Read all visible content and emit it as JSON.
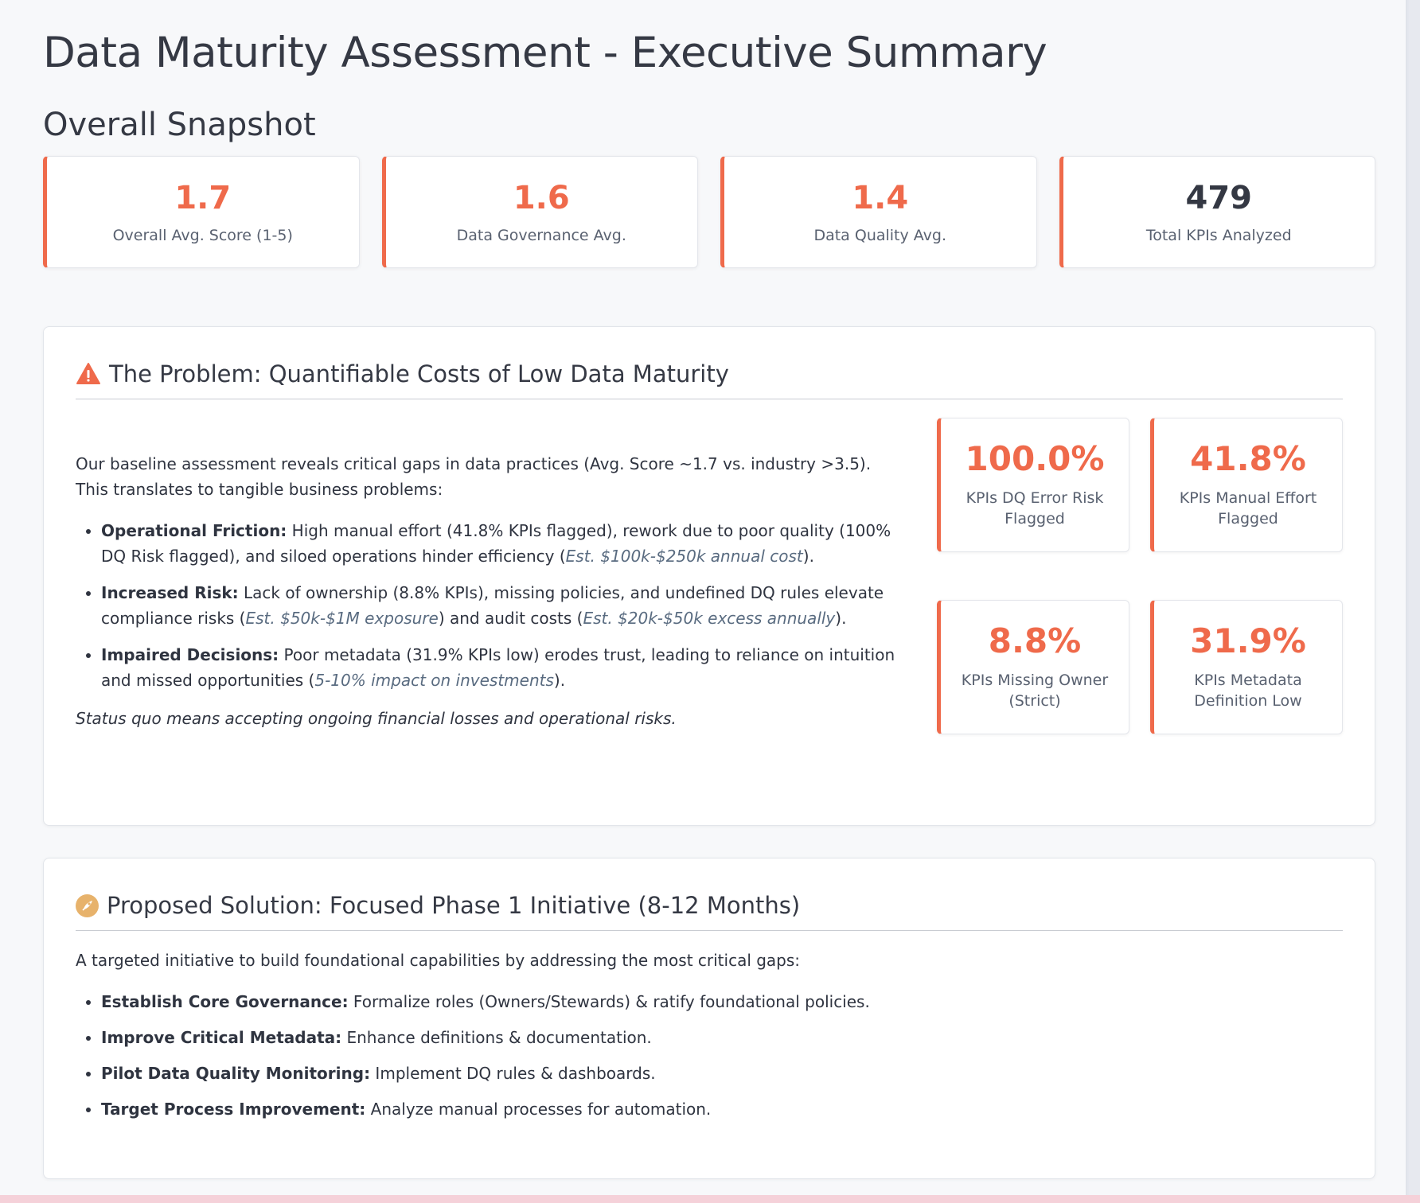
{
  "page_title": "Data Maturity Assessment - Executive Summary",
  "snapshot": {
    "title": "Overall Snapshot",
    "metrics": [
      {
        "value": "1.7",
        "label": "Overall Avg. Score (1-5)"
      },
      {
        "value": "1.6",
        "label": "Data Governance Avg."
      },
      {
        "value": "1.4",
        "label": "Data Quality Avg."
      },
      {
        "value": "479",
        "label": "Total KPIs Analyzed"
      }
    ]
  },
  "problem": {
    "icon": "warning-icon",
    "title": "The Problem: Quantifiable Costs of Low Data Maturity",
    "intro": "Our baseline assessment reveals critical gaps in data practices (Avg. Score ~1.7 vs. industry >3.5). This translates to tangible business problems:",
    "points": [
      {
        "bold": "Operational Friction:",
        "text": " High manual effort (41.8% KPIs flagged), rework due to poor quality (100% DQ Risk flagged), and siloed operations hinder efficiency (",
        "est": "Est. $100k-$250k annual cost",
        "tail": ")."
      },
      {
        "bold": "Increased Risk:",
        "text": " Lack of ownership (8.8% KPIs), missing policies, and undefined DQ rules elevate compliance risks (",
        "est": "Est. $50k-$1M exposure",
        "mid": ") and audit costs (",
        "est2": "Est. $20k-$50k excess annually",
        "tail": ")."
      },
      {
        "bold": "Impaired Decisions:",
        "text": " Poor metadata (31.9% KPIs low) erodes trust, leading to reliance on intuition and missed opportunities (",
        "est": "5-10% impact on investments",
        "tail": ")."
      }
    ],
    "status": "Status quo means accepting ongoing financial losses and operational risks.",
    "risk_cards": [
      {
        "value": "100.0%",
        "label": "KPIs DQ Error Risk Flagged"
      },
      {
        "value": "41.8%",
        "label": "KPIs Manual Effort Flagged"
      },
      {
        "value": "8.8%",
        "label": "KPIs Missing Owner (Strict)"
      },
      {
        "value": "31.9%",
        "label": "KPIs Metadata Definition Low"
      }
    ]
  },
  "solution": {
    "icon": "rocket-icon",
    "title": "Proposed Solution: Focused Phase 1 Initiative (8-12 Months)",
    "intro": "A targeted initiative to build foundational capabilities by addressing the most critical gaps:",
    "points": [
      {
        "bold": "Establish Core Governance:",
        "text": " Formalize roles (Owners/Stewards) & ratify foundational policies."
      },
      {
        "bold": "Improve Critical Metadata:",
        "text": " Enhance definitions & documentation."
      },
      {
        "bold": "Pilot Data Quality Monitoring:",
        "text": " Implement DQ rules & dashboards."
      },
      {
        "bold": "Target Process Improvement:",
        "text": " Analyze manual processes for automation."
      }
    ]
  },
  "colors": {
    "accent": "#ef6a4b",
    "solution_icon": "#e7b26b"
  }
}
